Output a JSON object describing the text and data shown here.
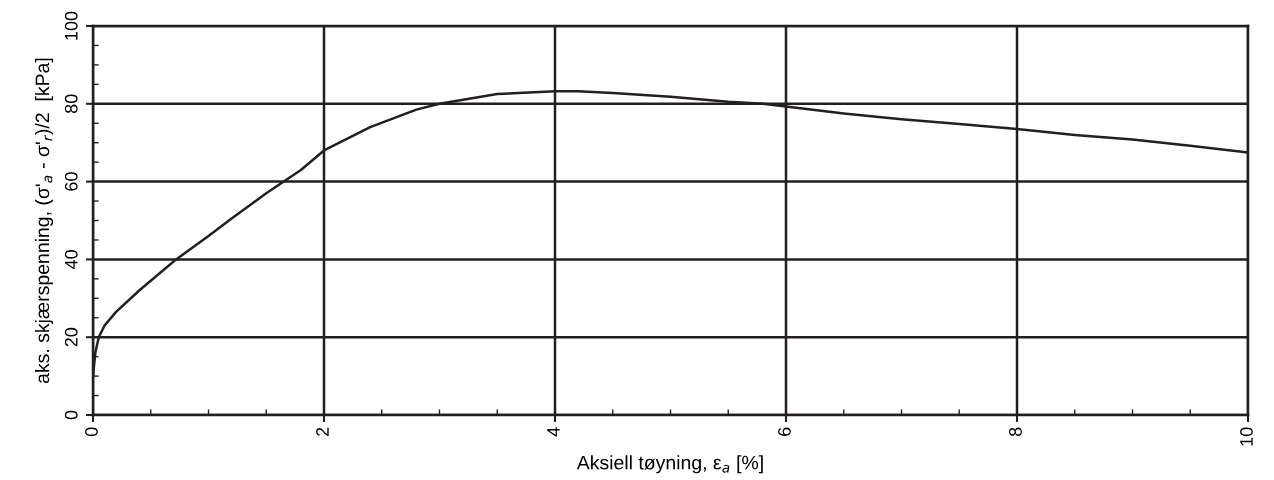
{
  "chart_data": {
    "type": "line",
    "xlabel": "Aksiell tøyning, ε$_{a}$ [%]",
    "ylabel": "aks. skjærspenning, (σ'$_{a}$ - σ'$_{r}$)/2  [kPa]",
    "xlim": [
      0,
      10
    ],
    "ylim": [
      0,
      100
    ],
    "xticks": [
      0,
      2,
      4,
      6,
      8,
      10
    ],
    "yticks": [
      0,
      20,
      40,
      60,
      80,
      100
    ],
    "grid": true,
    "marker": "none",
    "line_style": "solid",
    "series": [
      {
        "color": "#231f20",
        "x": [
          0,
          0.02,
          0.05,
          0.1,
          0.2,
          0.4,
          0.6,
          0.72,
          1.0,
          1.2,
          1.5,
          1.8,
          2.0,
          2.4,
          2.8,
          3.0,
          3.5,
          4.0,
          4.2,
          4.5,
          5.0,
          5.5,
          5.8,
          6.0,
          6.5,
          7.0,
          7.5,
          8.0,
          8.5,
          9.0,
          9.5,
          10
        ],
        "values": [
          10,
          16,
          20,
          23,
          26.5,
          32,
          37,
          40,
          46,
          50.5,
          57,
          63,
          68,
          74,
          78.5,
          80,
          82.5,
          83.2,
          83.2,
          82.8,
          81.8,
          80.5,
          80,
          79.3,
          77.5,
          76,
          74.8,
          73.5,
          72,
          70.8,
          69.2,
          67.5
        ]
      }
    ]
  }
}
